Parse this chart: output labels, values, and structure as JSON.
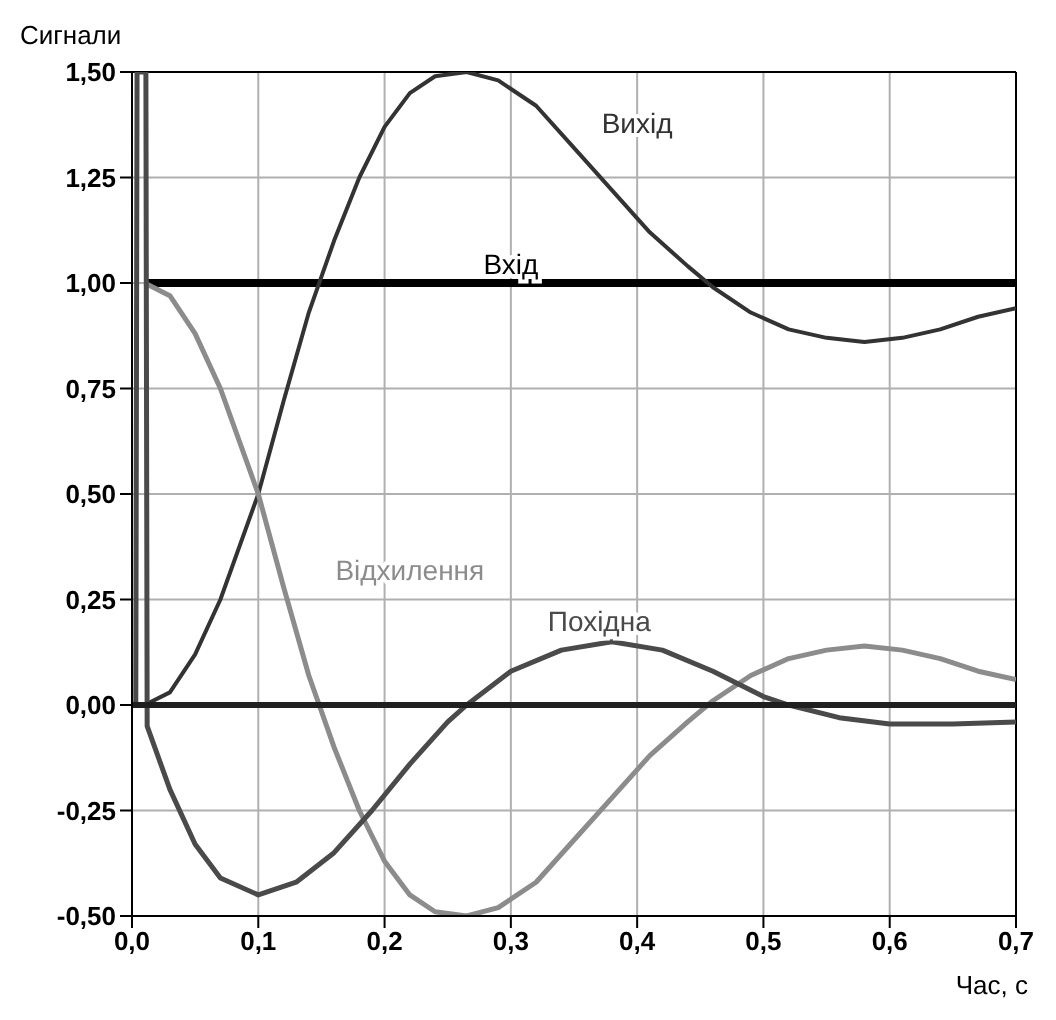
{
  "chart_data": {
    "type": "line",
    "xlabel": "Час, с",
    "ylabel": "Сигнали",
    "xlim": [
      0,
      0.7
    ],
    "xticks": [
      {
        "value": 0,
        "label": "0,0"
      },
      {
        "value": 0.1,
        "label": "0,1"
      },
      {
        "value": 0.2,
        "label": "0,2"
      },
      {
        "value": 0.3,
        "label": "0,3"
      },
      {
        "value": 0.4,
        "label": "0,4"
      },
      {
        "value": 0.5,
        "label": "0,5"
      },
      {
        "value": 0.6,
        "label": "0,6"
      },
      {
        "value": 0.7,
        "label": "0,7"
      }
    ],
    "ylim": [
      -0.5,
      1.5
    ],
    "yticks": [
      {
        "value": -0.5,
        "label": "-0,50"
      },
      {
        "value": -0.25,
        "label": "-0,25"
      },
      {
        "value": 0,
        "label": "0,00"
      },
      {
        "value": 0.25,
        "label": "0,25"
      },
      {
        "value": 0.5,
        "label": "0,50"
      },
      {
        "value": 0.75,
        "label": "0,75"
      },
      {
        "value": 1,
        "label": "1,00"
      },
      {
        "value": 1.25,
        "label": "1,25"
      },
      {
        "value": 1.5,
        "label": "1,50"
      }
    ],
    "grid": true,
    "legend": false,
    "marker": "none",
    "line_style": "solid",
    "ref_lines": [
      {
        "axis": "y",
        "value": 0,
        "color": "#202020"
      }
    ],
    "series": [
      {
        "name": "Вхід",
        "color": "#000000",
        "x": [
          0.01,
          0.7
        ],
        "values": [
          1,
          1
        ]
      },
      {
        "name": "Вихід",
        "color": "#333333",
        "x": [
          0.01,
          0.03,
          0.05,
          0.07,
          0.1,
          0.12,
          0.14,
          0.16,
          0.18,
          0.2,
          0.22,
          0.24,
          0.265,
          0.29,
          0.32,
          0.35,
          0.38,
          0.41,
          0.44,
          0.46,
          0.49,
          0.52,
          0.55,
          0.58,
          0.61,
          0.64,
          0.67,
          0.7
        ],
        "values": [
          0,
          0.03,
          0.12,
          0.25,
          0.5,
          0.72,
          0.93,
          1.1,
          1.25,
          1.37,
          1.45,
          1.49,
          1.5,
          1.48,
          1.42,
          1.32,
          1.22,
          1.12,
          1.04,
          0.99,
          0.93,
          0.89,
          0.87,
          0.86,
          0.87,
          0.89,
          0.92,
          0.94
        ]
      },
      {
        "name": "Відхилення",
        "color": "#8c8c8c",
        "x": [
          0.01,
          0.03,
          0.05,
          0.07,
          0.1,
          0.12,
          0.14,
          0.16,
          0.18,
          0.2,
          0.22,
          0.24,
          0.265,
          0.29,
          0.32,
          0.35,
          0.38,
          0.41,
          0.44,
          0.46,
          0.49,
          0.52,
          0.55,
          0.58,
          0.61,
          0.64,
          0.67,
          0.7
        ],
        "values": [
          1,
          0.97,
          0.88,
          0.75,
          0.5,
          0.28,
          0.07,
          -0.1,
          -0.25,
          -0.37,
          -0.45,
          -0.49,
          -0.5,
          -0.48,
          -0.42,
          -0.32,
          -0.22,
          -0.12,
          -0.04,
          0.01,
          0.07,
          0.11,
          0.13,
          0.14,
          0.13,
          0.11,
          0.08,
          0.06
        ]
      },
      {
        "name": "Похідна",
        "color": "#4a4a4a",
        "x": [
          0.003,
          0.004,
          0.011,
          0.012,
          0.03,
          0.05,
          0.07,
          0.1,
          0.13,
          0.16,
          0.19,
          0.22,
          0.25,
          0.265,
          0.3,
          0.34,
          0.38,
          0.42,
          0.46,
          0.5,
          0.52,
          0.56,
          0.6,
          0.65,
          0.7
        ],
        "values": [
          0,
          1.5,
          1.5,
          -0.05,
          -0.2,
          -0.33,
          -0.41,
          -0.45,
          -0.42,
          -0.35,
          -0.25,
          -0.14,
          -0.04,
          0,
          0.08,
          0.13,
          0.15,
          0.13,
          0.08,
          0.02,
          0,
          -0.03,
          -0.045,
          -0.045,
          -0.04
        ]
      }
    ]
  }
}
